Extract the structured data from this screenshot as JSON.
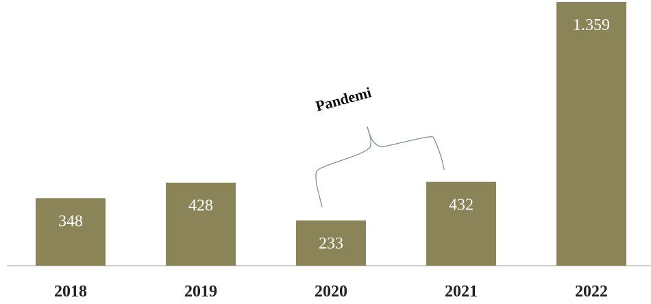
{
  "chart_data": {
    "type": "bar",
    "categories": [
      "2018",
      "2019",
      "2020",
      "2021",
      "2022"
    ],
    "values": [
      348,
      428,
      233,
      432,
      1359
    ],
    "value_labels": [
      "348",
      "428",
      "233",
      "432",
      "1.359"
    ],
    "color": "#8b8459",
    "annotation": "Pandemi"
  }
}
